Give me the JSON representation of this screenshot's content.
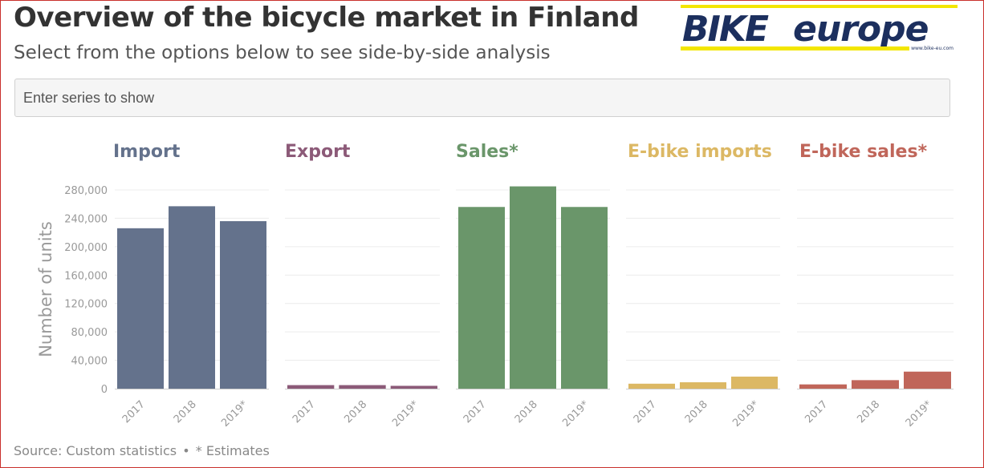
{
  "header": {
    "title": "Overview of the bicycle market in Finland",
    "subtitle": "Select from the options below to see side-by-side analysis"
  },
  "logo": {
    "word1": "BIKE",
    "word2": "europe",
    "url": "www.bike-eu.com",
    "primary_color": "#1c2f5e",
    "accent_color": "#f3e600"
  },
  "search": {
    "placeholder": "Enter series to show"
  },
  "footer": {
    "source": "Source: Custom statistics",
    "separator": "•",
    "note": "* Estimates"
  },
  "chart_data": {
    "type": "bar",
    "layout": "small-multiples",
    "ylabel": "Number of units",
    "ylim": [
      0,
      280000
    ],
    "yticks": [
      0,
      40000,
      80000,
      120000,
      160000,
      200000,
      240000,
      280000
    ],
    "ytick_labels": [
      "0",
      "40,000",
      "80,000",
      "120,000",
      "160,000",
      "200,000",
      "240,000",
      "280,000"
    ],
    "categories": [
      "2017",
      "2018",
      "2019*"
    ],
    "grid": true,
    "series": [
      {
        "name": "Import",
        "color": "#64728c",
        "values": [
          226000,
          257000,
          236000
        ]
      },
      {
        "name": "Export",
        "color": "#8c5a78",
        "values": [
          5000,
          5000,
          4000
        ]
      },
      {
        "name": "Sales*",
        "color": "#6a966a",
        "values": [
          256000,
          285000,
          256000
        ]
      },
      {
        "name": "E-bike imports",
        "color": "#dcb864",
        "values": [
          7000,
          9000,
          17000
        ]
      },
      {
        "name": "E-bike sales*",
        "color": "#c0665a",
        "values": [
          6000,
          12000,
          24000
        ]
      }
    ]
  }
}
